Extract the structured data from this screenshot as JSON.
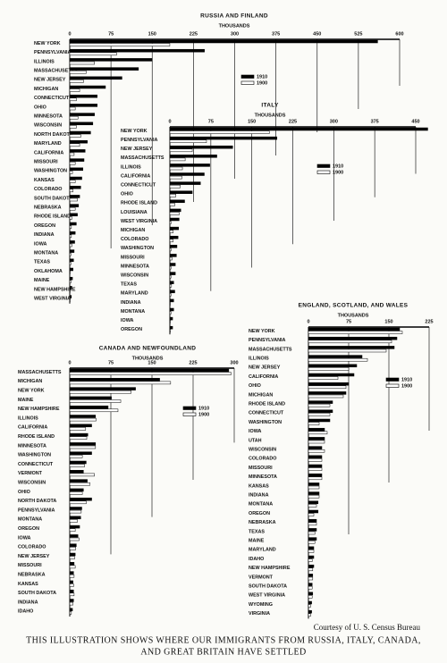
{
  "chart_data": [
    {
      "type": "bar",
      "orientation": "horizontal",
      "title": "RUSSIA AND FINLAND",
      "xlabel": "THOUSANDS",
      "categories": [
        "NEW YORK",
        "PENNSYLVANIA",
        "ILLINOIS",
        "MASSACHUSETTS",
        "NEW JERSEY",
        "MICHIGAN",
        "CONNECTICUT",
        "OHIO",
        "MINNESOTA",
        "WISCONSIN",
        "NORTH DAKOTA",
        "MARYLAND",
        "CALIFORNIA",
        "MISSOURI",
        "WASHINGTON",
        "KANSAS",
        "COLORADO",
        "SOUTH DAKOTA",
        "NEBRASKA",
        "RHODE ISLAND",
        "OREGON",
        "INDIANA",
        "IOWA",
        "MONTANA",
        "TEXAS",
        "OKLAHOMA",
        "MAINE",
        "NEW HAMPSHIRE",
        "WEST VIRGINIA"
      ],
      "series": [
        {
          "name": "1910",
          "color": "#000000",
          "values": [
            560,
            245,
            150,
            125,
            95,
            65,
            50,
            50,
            45,
            42,
            38,
            32,
            28,
            26,
            24,
            22,
            20,
            18,
            16,
            14,
            12,
            10,
            9,
            8,
            7,
            6,
            5,
            4,
            3
          ]
        },
        {
          "name": "1900",
          "color": "#ffffff",
          "values": [
            182,
            85,
            45,
            30,
            25,
            18,
            12,
            10,
            15,
            12,
            20,
            18,
            8,
            10,
            5,
            10,
            6,
            14,
            10,
            4,
            3,
            3,
            4,
            2,
            2,
            1,
            2,
            1,
            1
          ]
        }
      ],
      "xlim": [
        0,
        600
      ],
      "xticks": [
        0,
        75,
        150,
        225,
        300,
        375,
        450,
        525,
        600
      ],
      "grid": true
    },
    {
      "type": "bar",
      "orientation": "horizontal",
      "title": "ITALY",
      "xlabel": "THOUSANDS",
      "categories": [
        "NEW YORK",
        "PENNSYLVANIA",
        "NEW JERSEY",
        "MASSACHUSETTS",
        "ILLINOIS",
        "CALIFORNIA",
        "CONNECTICUT",
        "OHIO",
        "RHODE ISLAND",
        "LOUISIANA",
        "WEST VIRGINIA",
        "MICHIGAN",
        "COLORADO",
        "WASHINGTON",
        "MISSOURI",
        "MINNESOTA",
        "WISCONSIN",
        "TEXAS",
        "MARYLAND",
        "INDIANA",
        "MONTANA",
        "IOWA",
        "OREGON"
      ],
      "series": [
        {
          "name": "1910",
          "color": "#000000",
          "values": [
            472,
            196,
            115,
            86,
            73,
            63,
            56,
            41,
            27,
            20,
            17,
            16,
            15,
            13,
            12,
            10,
            10,
            7,
            9,
            7,
            7,
            5,
            5
          ]
        },
        {
          "name": "1900",
          "color": "#ffffff",
          "values": [
            182,
            67,
            41,
            28,
            23,
            22,
            19,
            11,
            9,
            17,
            2,
            6,
            6,
            2,
            4,
            2,
            2,
            3,
            2,
            1,
            2,
            1,
            1
          ]
        }
      ],
      "xlim": [
        0,
        450
      ],
      "xticks": [
        0,
        75,
        150,
        225,
        300,
        375,
        450
      ],
      "grid": true
    },
    {
      "type": "bar",
      "orientation": "horizontal",
      "title": "CANADA AND NEWFOUNDLAND",
      "xlabel": "THOUSANDS",
      "categories": [
        "MASSACHUSETTS",
        "MICHIGAN",
        "NEW YORK",
        "MAINE",
        "NEW HAMPSHIRE",
        "ILLINOIS",
        "CALIFORNIA",
        "RHODE ISLAND",
        "MINNESOTA",
        "WASHINGTON",
        "CONNECTICUT",
        "VERMONT",
        "WISCONSIN",
        "OHIO",
        "NORTH DAKOTA",
        "PENNSYLVANIA",
        "MONTANA",
        "OREGON",
        "IOWA",
        "COLORADO",
        "NEW JERSEY",
        "MISSOURI",
        "NEBRASKA",
        "KANSAS",
        "SOUTH DAKOTA",
        "INDIANA",
        "IDAHO"
      ],
      "series": [
        {
          "name": "1910",
          "color": "#000000",
          "values": [
            290,
            164,
            120,
            76,
            70,
            47,
            40,
            33,
            47,
            40,
            30,
            25,
            32,
            25,
            40,
            22,
            20,
            18,
            15,
            12,
            10,
            8,
            7,
            6,
            7,
            7,
            5
          ]
        },
        {
          "name": "1900",
          "color": "#ffffff",
          "values": [
            294,
            184,
            112,
            93,
            88,
            48,
            29,
            31,
            47,
            23,
            27,
            45,
            37,
            23,
            30,
            21,
            14,
            10,
            17,
            11,
            9,
            10,
            8,
            7,
            8,
            6,
            3
          ]
        }
      ],
      "xlim": [
        0,
        300
      ],
      "xticks": [
        0,
        75,
        150,
        225,
        300
      ],
      "grid": true
    },
    {
      "type": "bar",
      "orientation": "horizontal",
      "title": "ENGLAND, SCOTLAND, AND WALES",
      "xlabel": "THOUSANDS",
      "categories": [
        "NEW YORK",
        "PENNSYLVANIA",
        "MASSACHUSETTS",
        "ILLINOIS",
        "NEW JERSEY",
        "CALIFORNIA",
        "OHIO",
        "MICHIGAN",
        "RHODE ISLAND",
        "CONNECTICUT",
        "WASHINGTON",
        "IOWA",
        "UTAH",
        "WISCONSIN",
        "COLORADO",
        "MISSOURI",
        "MINNESOTA",
        "KANSAS",
        "INDIANA",
        "MONTANA",
        "OREGON",
        "NEBRASKA",
        "TEXAS",
        "MAINE",
        "MARYLAND",
        "IDAHO",
        "NEW HAMPSHIRE",
        "VERMONT",
        "SOUTH DAKOTA",
        "WEST VIRGINIA",
        "WYOMING",
        "VIRGINIA"
      ],
      "series": [
        {
          "name": "1910",
          "color": "#000000",
          "values": [
            170,
            165,
            160,
            100,
            90,
            85,
            75,
            70,
            45,
            45,
            40,
            30,
            30,
            25,
            25,
            25,
            25,
            20,
            20,
            18,
            18,
            15,
            15,
            15,
            10,
            10,
            10,
            8,
            7,
            8,
            6,
            6
          ]
        },
        {
          "name": "1900",
          "color": "#ffffff",
          "values": [
            175,
            155,
            145,
            110,
            75,
            55,
            70,
            65,
            40,
            40,
            20,
            35,
            30,
            30,
            25,
            25,
            25,
            20,
            20,
            15,
            10,
            15,
            12,
            12,
            10,
            7,
            8,
            8,
            7,
            7,
            4,
            4
          ]
        }
      ],
      "xlim": [
        0,
        225
      ],
      "xticks": [
        0,
        75,
        150,
        225
      ],
      "grid": true
    }
  ],
  "credit": "Courtesy of U. S. Census Bureau",
  "caption": [
    "THIS ILLUSTRATION SHOWS WHERE OUR IMMIGRANTS FROM RUSSIA, ITALY, CANADA,",
    "AND GREAT BRITAIN HAVE SETTLED"
  ]
}
